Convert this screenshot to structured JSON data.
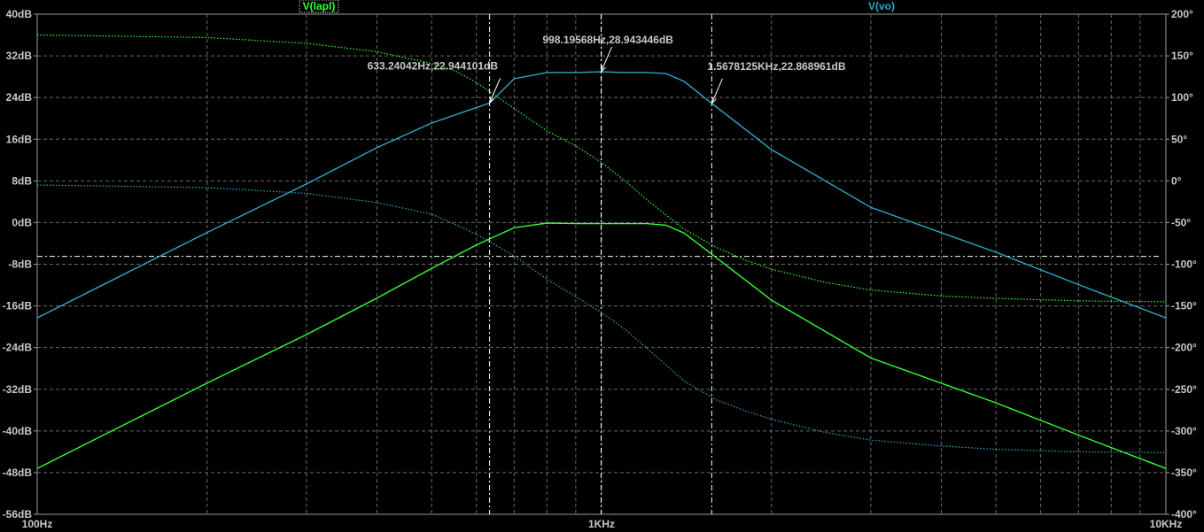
{
  "chart_data": {
    "type": "line",
    "x_scale": "log",
    "xlim": [
      100,
      10000
    ],
    "x_ticks": [
      {
        "value": 100,
        "label": "100Hz"
      },
      {
        "value": 1000,
        "label": "1KHz"
      },
      {
        "value": 10000,
        "label": "10KHz"
      }
    ],
    "ylim_left": [
      -56,
      40
    ],
    "y_ticks_left": [
      {
        "value": 40,
        "label": "40dB"
      },
      {
        "value": 32,
        "label": "32dB"
      },
      {
        "value": 24,
        "label": "24dB"
      },
      {
        "value": 16,
        "label": "16dB"
      },
      {
        "value": 8,
        "label": "8dB"
      },
      {
        "value": 0,
        "label": "0dB"
      },
      {
        "value": -8,
        "label": "-8dB"
      },
      {
        "value": -16,
        "label": "-16dB"
      },
      {
        "value": -24,
        "label": "-24dB"
      },
      {
        "value": -32,
        "label": "-32dB"
      },
      {
        "value": -40,
        "label": "-40dB"
      },
      {
        "value": -48,
        "label": "-48dB"
      },
      {
        "value": -56,
        "label": "-56dB"
      }
    ],
    "ylim_right": [
      -400,
      200
    ],
    "y_ticks_right": [
      {
        "value": 200,
        "label": "200°"
      },
      {
        "value": 150,
        "label": "150°"
      },
      {
        "value": 100,
        "label": "100°"
      },
      {
        "value": 50,
        "label": "50°"
      },
      {
        "value": 0,
        "label": "0°"
      },
      {
        "value": -50,
        "label": "-50°"
      },
      {
        "value": -100,
        "label": "-100°"
      },
      {
        "value": -150,
        "label": "-150°"
      },
      {
        "value": -200,
        "label": "-200°"
      },
      {
        "value": -250,
        "label": "-250°"
      },
      {
        "value": -300,
        "label": "-300°"
      },
      {
        "value": -350,
        "label": "-350°"
      },
      {
        "value": -400,
        "label": "-400°"
      }
    ],
    "grid": true,
    "series": [
      {
        "name": "V(lapl)",
        "color": "#33ff33",
        "magnitude_db": [
          [
            100,
            -47.2
          ],
          [
            150,
            -37.6
          ],
          [
            200,
            -30.8
          ],
          [
            300,
            -21.5
          ],
          [
            400,
            -14.5
          ],
          [
            500,
            -8.8
          ],
          [
            600,
            -4.3
          ],
          [
            700,
            -1.0
          ],
          [
            800,
            -0.1
          ],
          [
            900,
            -0.2
          ],
          [
            1000,
            -0.2
          ],
          [
            1100,
            -0.2
          ],
          [
            1200,
            -0.2
          ],
          [
            1300,
            -0.5
          ],
          [
            1400,
            -2.0
          ],
          [
            1600,
            -6.8
          ],
          [
            2000,
            -14.9
          ],
          [
            3000,
            -26.0
          ],
          [
            5000,
            -34.6
          ],
          [
            7000,
            -40.8
          ],
          [
            10000,
            -47.2
          ]
        ],
        "phase_deg": [
          [
            100,
            175
          ],
          [
            200,
            172
          ],
          [
            300,
            165
          ],
          [
            400,
            155
          ],
          [
            500,
            141
          ],
          [
            550,
            132
          ],
          [
            600,
            118
          ],
          [
            700,
            87
          ],
          [
            800,
            60
          ],
          [
            900,
            42
          ],
          [
            1000,
            22
          ],
          [
            1100,
            0
          ],
          [
            1200,
            -22
          ],
          [
            1400,
            -58
          ],
          [
            1600,
            -80
          ],
          [
            1800,
            -95
          ],
          [
            2000,
            -106
          ],
          [
            2500,
            -122
          ],
          [
            3000,
            -131
          ],
          [
            4000,
            -138
          ],
          [
            5000,
            -141
          ],
          [
            7000,
            -144
          ],
          [
            10000,
            -145
          ]
        ]
      },
      {
        "name": "V(vo)",
        "color": "#2fa8c8",
        "magnitude_db": [
          [
            100,
            -18.3
          ],
          [
            150,
            -8.7
          ],
          [
            200,
            -1.9
          ],
          [
            300,
            7.4
          ],
          [
            400,
            14.4
          ],
          [
            500,
            19.1
          ],
          [
            633.24042,
            22.944101
          ],
          [
            700,
            27.6
          ],
          [
            800,
            28.8
          ],
          [
            900,
            28.8
          ],
          [
            998.19568,
            28.943446
          ],
          [
            1100,
            28.8
          ],
          [
            1200,
            28.8
          ],
          [
            1300,
            28.6
          ],
          [
            1400,
            27.1
          ],
          [
            1567.8125,
            22.868961
          ],
          [
            2000,
            14.0
          ],
          [
            3000,
            2.9
          ],
          [
            5000,
            -5.7
          ],
          [
            7000,
            -11.9
          ],
          [
            10000,
            -18.3
          ]
        ],
        "phase_deg": [
          [
            100,
            -5
          ],
          [
            200,
            -8
          ],
          [
            300,
            -15
          ],
          [
            400,
            -26
          ],
          [
            500,
            -40
          ],
          [
            550,
            -52
          ],
          [
            600,
            -64
          ],
          [
            700,
            -90
          ],
          [
            800,
            -118
          ],
          [
            900,
            -139
          ],
          [
            1000,
            -158
          ],
          [
            1100,
            -178
          ],
          [
            1200,
            -200
          ],
          [
            1400,
            -240
          ],
          [
            1600,
            -263
          ],
          [
            1800,
            -276
          ],
          [
            2000,
            -286
          ],
          [
            2500,
            -302
          ],
          [
            3000,
            -311
          ],
          [
            4000,
            -318
          ],
          [
            5000,
            -322
          ],
          [
            7000,
            -325
          ],
          [
            10000,
            -326
          ]
        ]
      }
    ],
    "cursors": [
      {
        "x": 633.24042,
        "y": 22.944101,
        "label": "633.24042Hz,22.944101dB"
      },
      {
        "x": 998.19568,
        "y": 28.943446,
        "label": "998.19568Hz,28.943446dB"
      },
      {
        "x": 1567.8125,
        "y": 22.868961,
        "label": "1.5678125KHz,22.868961dB"
      }
    ],
    "reference_line_db": -6.5
  }
}
